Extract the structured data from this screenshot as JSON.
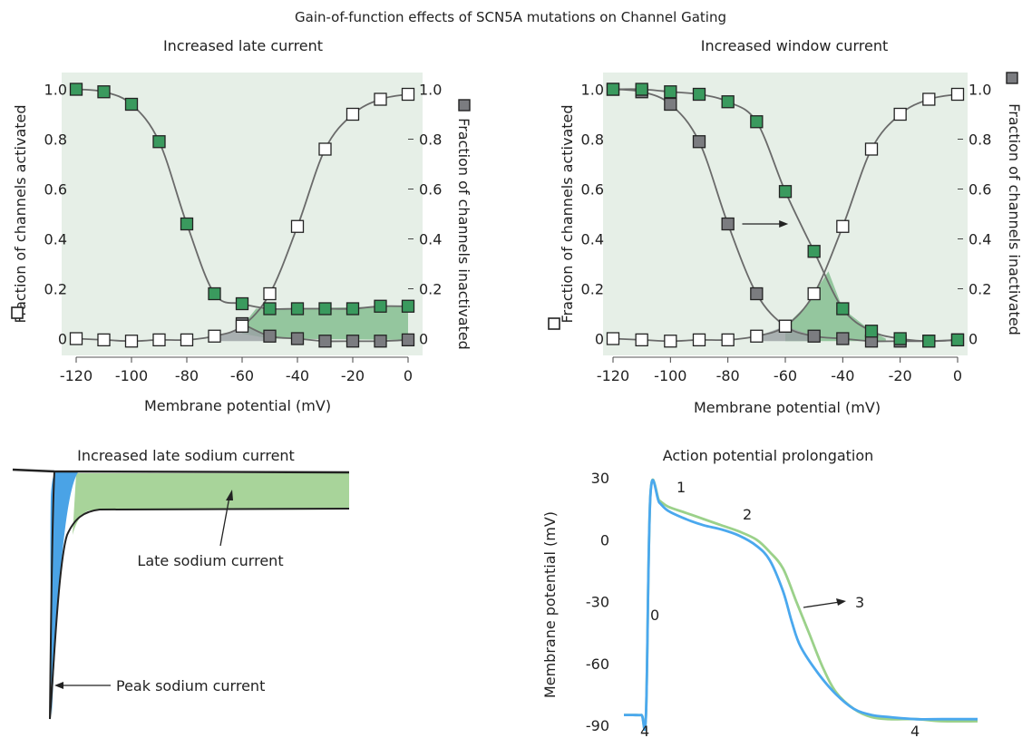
{
  "title": "Gain-of-function effects of SCN5A mutations on Channel Gating",
  "legend_icons": {
    "open": "open-square-icon",
    "filled": "filled-square-icon"
  },
  "colors": {
    "panel_bg": "#e6efe7",
    "green_marker": "#3a9a5e",
    "gray_marker": "#7b7c80",
    "curve": "#6a6a6a",
    "shade_green": "#7fbc8c",
    "shade_gray": "#9aa0a4",
    "late_fill": "#a8d49a",
    "peak_fill": "#4aa3e6",
    "ap_blue": "#4aa8ee",
    "ap_green": "#9bd18a"
  },
  "chart_data": [
    {
      "type": "scatter",
      "panel_title": "Increased late current",
      "xlabel": "Membrane potential (mV)",
      "ylabel_left": "Fraction of channels activated",
      "ylabel_right": "Fraction of channels inactivated",
      "xlim": [
        -120,
        0
      ],
      "ylim": [
        -0.06,
        1.06
      ],
      "x_ticks": [
        "-120",
        "-100",
        "-80",
        "-60",
        "-40",
        "-20",
        "0"
      ],
      "y_ticks": [
        "0",
        "0.2",
        "0.4",
        "0.6",
        "0.8",
        "1.0"
      ],
      "y_ticks_right": [
        "0",
        "0.2",
        "0.4",
        "0.6",
        "0.8",
        "1.0"
      ],
      "series": [
        {
          "marker": "open",
          "x": [
            -120,
            -110,
            -100,
            -90,
            -80,
            -70,
            -60,
            -50,
            -40,
            -30,
            -20,
            -10,
            0
          ],
          "y": [
            0.0,
            -0.005,
            -0.01,
            -0.005,
            -0.005,
            0.01,
            0.05,
            0.18,
            0.45,
            0.76,
            0.9,
            0.96,
            0.98
          ]
        },
        {
          "marker": "gray",
          "x": [
            -60,
            -50,
            -40,
            -30,
            -20,
            -10,
            0
          ],
          "y": [
            0.06,
            0.01,
            0.0,
            -0.01,
            -0.01,
            -0.01,
            -0.005
          ]
        },
        {
          "marker": "green",
          "x": [
            -120,
            -110,
            -100,
            -90,
            -80,
            -70,
            -60,
            -50,
            -40,
            -30,
            -20,
            -10,
            0
          ],
          "y": [
            1.0,
            0.99,
            0.94,
            0.79,
            0.46,
            0.18,
            0.14,
            0.12,
            0.12,
            0.12,
            0.12,
            0.13,
            0.13
          ]
        }
      ]
    },
    {
      "type": "scatter",
      "panel_title": "Increased window current",
      "xlabel": "Membrane potential (mV)",
      "ylabel_left": "Fraction of channels activated",
      "ylabel_right": "Fraction of channels inactivated",
      "xlim": [
        -120,
        0
      ],
      "ylim": [
        -0.06,
        1.06
      ],
      "x_ticks": [
        "-120",
        "-100",
        "-80",
        "-60",
        "-40",
        "-20",
        "0"
      ],
      "y_ticks": [
        "0",
        "0.2",
        "0.4",
        "0.6",
        "0.8",
        "1.0"
      ],
      "y_ticks_right": [
        "0",
        "0.2",
        "0.4",
        "0.6",
        "0.8",
        "1.0"
      ],
      "series": [
        {
          "marker": "open",
          "x": [
            -120,
            -110,
            -100,
            -90,
            -80,
            -70,
            -60,
            -50,
            -40,
            -30,
            -20,
            -10,
            0
          ],
          "y": [
            0.0,
            -0.005,
            -0.01,
            -0.005,
            -0.005,
            0.01,
            0.05,
            0.18,
            0.45,
            0.76,
            0.9,
            0.96,
            0.98
          ]
        },
        {
          "marker": "gray",
          "x": [
            -120,
            -110,
            -100,
            -90,
            -80,
            -70,
            -60,
            -50,
            -40,
            -30,
            -20,
            -10,
            0
          ],
          "y": [
            1.0,
            0.99,
            0.94,
            0.79,
            0.46,
            0.18,
            0.05,
            0.01,
            0.0,
            -0.01,
            -0.01,
            -0.01,
            -0.005
          ]
        },
        {
          "marker": "green",
          "x": [
            -120,
            -110,
            -100,
            -90,
            -80,
            -70,
            -60,
            -50,
            -40,
            -30,
            -20,
            -10,
            0
          ],
          "y": [
            1.0,
            1.0,
            0.99,
            0.98,
            0.95,
            0.87,
            0.59,
            0.35,
            0.12,
            0.03,
            0.0,
            -0.01,
            -0.005
          ]
        }
      ],
      "annotation": "arrow from gray curve to green curve at 0.46"
    },
    {
      "type": "line",
      "panel_title": "Increased late sodium current",
      "labels": [
        "Late sodium current",
        "Peak sodium current"
      ]
    },
    {
      "type": "line",
      "panel_title": "Action potential prolongation",
      "ylabel": "Membrane potential (mV)",
      "ylim": [
        -90,
        30
      ],
      "y_ticks": [
        "30",
        "0",
        "-30",
        "-60",
        "-90"
      ],
      "phase_labels": [
        "0",
        "1",
        "2",
        "3",
        "4",
        "4"
      ],
      "series": [
        {
          "color": "blue",
          "x": [
            0,
            2,
            4,
            5,
            6,
            8,
            10,
            14,
            18,
            22,
            26,
            30,
            33,
            36,
            38,
            40,
            44,
            48,
            52,
            56,
            60,
            66,
            72,
            80
          ],
          "y": [
            -85,
            -85,
            -85,
            -84,
            22,
            18,
            14,
            10,
            7,
            5,
            2,
            -3,
            -10,
            -25,
            -40,
            -52,
            -65,
            -75,
            -82,
            -85,
            -86,
            -87,
            -87,
            -87
          ]
        },
        {
          "color": "green",
          "x": [
            0,
            2,
            4,
            5,
            6,
            8,
            10,
            14,
            18,
            22,
            26,
            30,
            33,
            36,
            39,
            42,
            45,
            48,
            52,
            56,
            60,
            66,
            72,
            80
          ],
          "y": [
            -85,
            -85,
            -85,
            -84,
            22,
            19,
            16,
            13,
            10,
            7,
            4,
            0,
            -6,
            -14,
            -30,
            -46,
            -62,
            -74,
            -82,
            -86,
            -87,
            -87,
            -88,
            -88
          ]
        }
      ]
    }
  ]
}
